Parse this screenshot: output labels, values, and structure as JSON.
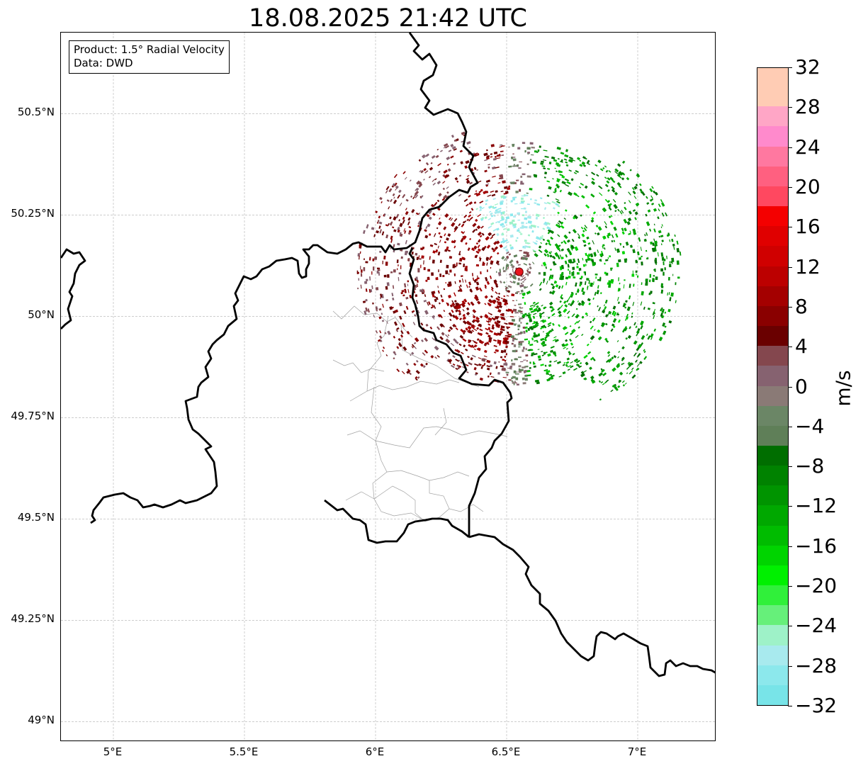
{
  "title": "18.08.2025 21:42 UTC",
  "infobox": {
    "product": "Product: 1.5° Radial Velocity",
    "source": "Data: DWD"
  },
  "map": {
    "lon_range": [
      4.8,
      7.3
    ],
    "lat_range": [
      48.95,
      50.7
    ],
    "lat_ticks": [
      {
        "value": 50.5,
        "label": "50.5°N"
      },
      {
        "value": 50.25,
        "label": "50.25°N"
      },
      {
        "value": 50.0,
        "label": "50°N"
      },
      {
        "value": 49.75,
        "label": "49.75°N"
      },
      {
        "value": 49.5,
        "label": "49.5°N"
      },
      {
        "value": 49.25,
        "label": "49.25°N"
      },
      {
        "value": 49.0,
        "label": "49°N"
      }
    ],
    "lon_ticks": [
      {
        "value": 5.0,
        "label": "5°E"
      },
      {
        "value": 5.5,
        "label": "5.5°E"
      },
      {
        "value": 6.0,
        "label": "6°E"
      },
      {
        "value": 6.5,
        "label": "6.5°E"
      },
      {
        "value": 7.0,
        "label": "7°E"
      }
    ],
    "radar_site": {
      "lon": 6.548,
      "lat": 50.11
    },
    "colors": {
      "border": "#000000",
      "gridline": "#b0b0b0",
      "district": "#a0a0a0",
      "radar_marker": "#e8141e"
    }
  },
  "colorbar": {
    "unit": "m/s",
    "min": -32,
    "max": 32,
    "ticks": [
      {
        "value": 32,
        "label": "32"
      },
      {
        "value": 28,
        "label": "28"
      },
      {
        "value": 24,
        "label": "24"
      },
      {
        "value": 20,
        "label": "20"
      },
      {
        "value": 16,
        "label": "16"
      },
      {
        "value": 12,
        "label": "12"
      },
      {
        "value": 8,
        "label": "8"
      },
      {
        "value": 4,
        "label": "4"
      },
      {
        "value": 0,
        "label": "0"
      },
      {
        "value": -4,
        "label": "−4"
      },
      {
        "value": -8,
        "label": "−8"
      },
      {
        "value": -12,
        "label": "−12"
      },
      {
        "value": -16,
        "label": "−16"
      },
      {
        "value": -20,
        "label": "−20"
      },
      {
        "value": -24,
        "label": "−24"
      },
      {
        "value": -28,
        "label": "−28"
      },
      {
        "value": -32,
        "label": "−32"
      }
    ],
    "colors_bottom_to_top": [
      "#78e4e8",
      "#8ce8ec",
      "#a8eaee",
      "#9ef2c8",
      "#66f07a",
      "#30f03a",
      "#00f000",
      "#00d400",
      "#00bc00",
      "#00a800",
      "#009400",
      "#008200",
      "#006e00",
      "#5f7f58",
      "#6b8666",
      "#8a7a76",
      "#866270",
      "#84474e",
      "#6a0000",
      "#8a0000",
      "#a40000",
      "#bc0000",
      "#d00000",
      "#e00000",
      "#f40000",
      "#ff4860",
      "#ff6080",
      "#ff78a0",
      "#ff8acc",
      "#ffa6c6",
      "#ffccb4",
      "#ffccb4"
    ]
  }
}
